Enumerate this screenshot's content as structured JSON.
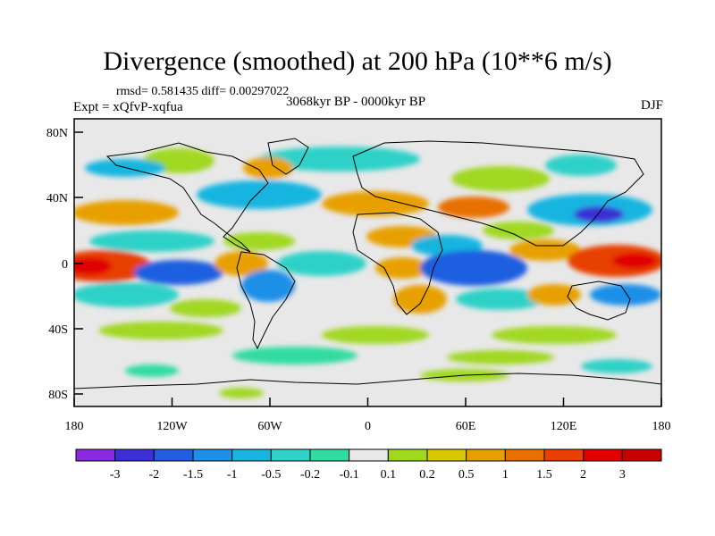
{
  "header": {
    "title": "Divergence (smoothed) at 200 hPa (10**6 m/s)",
    "stats": "rmsd= 0.581435 diff= 0.00297022",
    "experiment": "Expt = xQfvP-xqfua",
    "period": "3068kyr BP - 0000kyr BP",
    "season": "DJF"
  },
  "axes": {
    "x_ticks": [
      "180",
      "120W",
      "60W",
      "0",
      "60E",
      "120E",
      "180"
    ],
    "y_ticks": [
      "80N",
      "40N",
      "0",
      "40S",
      "80S"
    ],
    "lon_range": [
      -180,
      180
    ],
    "lat_range": [
      -90,
      90
    ]
  },
  "colorbar": {
    "labels": [
      "-3",
      "-2",
      "-1.5",
      "-1",
      "-0.5",
      "-0.2",
      "-0.1",
      "0.1",
      "0.2",
      "0.5",
      "1",
      "1.5",
      "2",
      "3"
    ],
    "colors": [
      "#8a2be2",
      "#3b2fd6",
      "#1f5fe0",
      "#1e90e8",
      "#19b5e0",
      "#2fd1c8",
      "#30dca0",
      "#e8e8e8",
      "#a0d820",
      "#d8c800",
      "#e8a000",
      "#e87000",
      "#e84000",
      "#e00000",
      "#c80000"
    ]
  },
  "land_color": "#e8e8e8",
  "color_levels": {
    "neg_strong": "#1f5fe0",
    "neg_mid": "#1e90e8",
    "neg_weak": "#2fd1c8",
    "pos_weak": "#a0d820",
    "pos_mid": "#e8a000",
    "pos_strong": "#e84000"
  }
}
